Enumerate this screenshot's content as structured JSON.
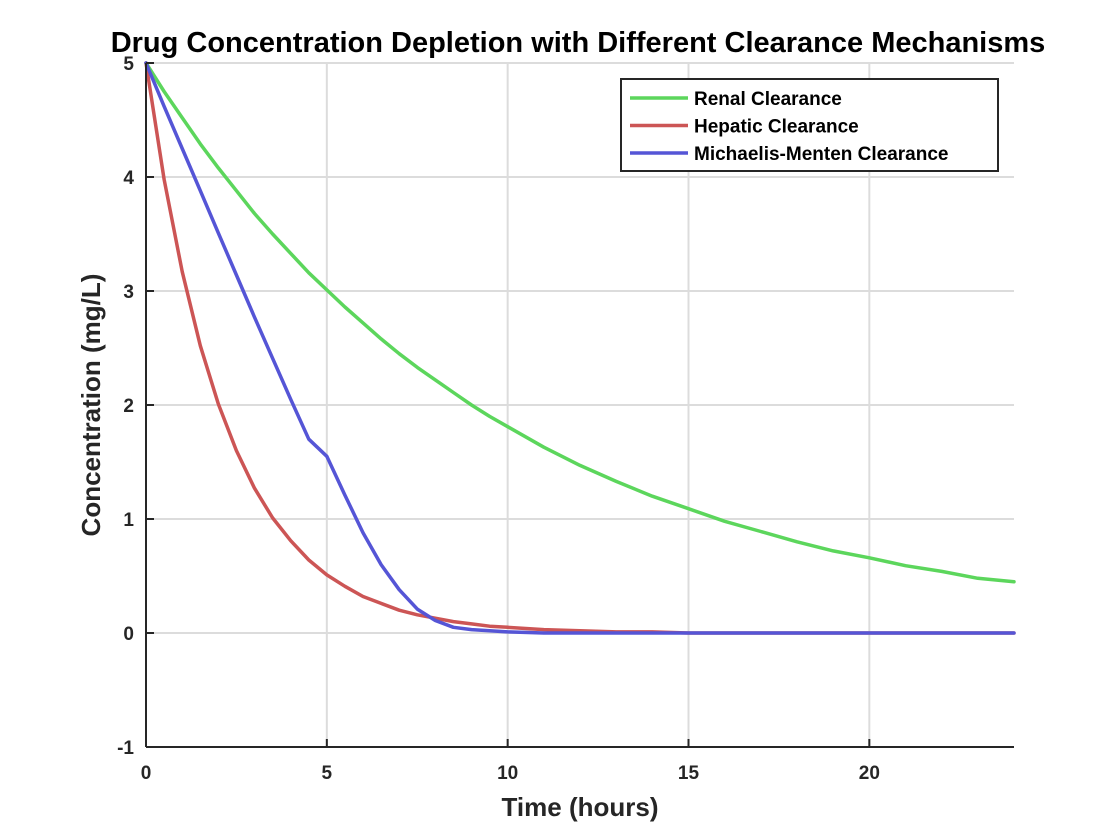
{
  "chart_data": {
    "type": "line",
    "title": "Drug Concentration Depletion with Different Clearance Mechanisms",
    "xlabel": "Time (hours)",
    "ylabel": "Concentration (mg/L)",
    "xlim": [
      0,
      24
    ],
    "ylim": [
      -1,
      5
    ],
    "xticks": [
      0,
      5,
      10,
      15,
      20
    ],
    "yticks": [
      -1,
      0,
      1,
      2,
      3,
      4,
      5
    ],
    "xtick_labels": [
      "0",
      "5",
      "10",
      "15",
      "20"
    ],
    "ytick_labels": [
      "-1",
      "0",
      "1",
      "2",
      "3",
      "4",
      "5"
    ],
    "grid": true,
    "legend_position": "top-right",
    "x": [
      0,
      0.5,
      1,
      1.5,
      2,
      2.5,
      3,
      3.5,
      4,
      4.5,
      5,
      5.5,
      6,
      6.5,
      7,
      7.5,
      8,
      8.5,
      9,
      9.5,
      10,
      11,
      12,
      13,
      14,
      15,
      16,
      17,
      18,
      19,
      20,
      21,
      22,
      23,
      24
    ],
    "series": [
      {
        "name": "Renal Clearance",
        "color": "#5cd65c",
        "values": [
          5.0,
          4.75,
          4.52,
          4.29,
          4.08,
          3.88,
          3.68,
          3.5,
          3.33,
          3.16,
          3.01,
          2.86,
          2.72,
          2.58,
          2.45,
          2.33,
          2.22,
          2.11,
          2.0,
          1.9,
          1.81,
          1.63,
          1.47,
          1.33,
          1.2,
          1.09,
          0.98,
          0.89,
          0.8,
          0.72,
          0.66,
          0.59,
          0.54,
          0.48,
          0.45
        ]
      },
      {
        "name": "Hepatic Clearance",
        "color": "#cc5555",
        "values": [
          5.0,
          3.98,
          3.17,
          2.52,
          2.01,
          1.6,
          1.27,
          1.01,
          0.81,
          0.64,
          0.51,
          0.41,
          0.32,
          0.26,
          0.2,
          0.16,
          0.13,
          0.1,
          0.08,
          0.06,
          0.05,
          0.03,
          0.02,
          0.01,
          0.01,
          0.0,
          0.0,
          0.0,
          0.0,
          0.0,
          0.0,
          0.0,
          0.0,
          0.0,
          0.0
        ]
      },
      {
        "name": "Michaelis-Menten Clearance",
        "color": "#5555d6",
        "values": [
          5.0,
          4.62,
          4.25,
          3.88,
          3.51,
          3.14,
          2.77,
          2.41,
          2.05,
          1.7,
          1.55,
          1.21,
          0.88,
          0.6,
          0.38,
          0.21,
          0.11,
          0.05,
          0.03,
          0.02,
          0.01,
          0.0,
          0.0,
          0.0,
          0.0,
          0.0,
          0.0,
          0.0,
          0.0,
          0.0,
          0.0,
          0.0,
          0.0,
          0.0,
          0.0
        ]
      }
    ]
  }
}
